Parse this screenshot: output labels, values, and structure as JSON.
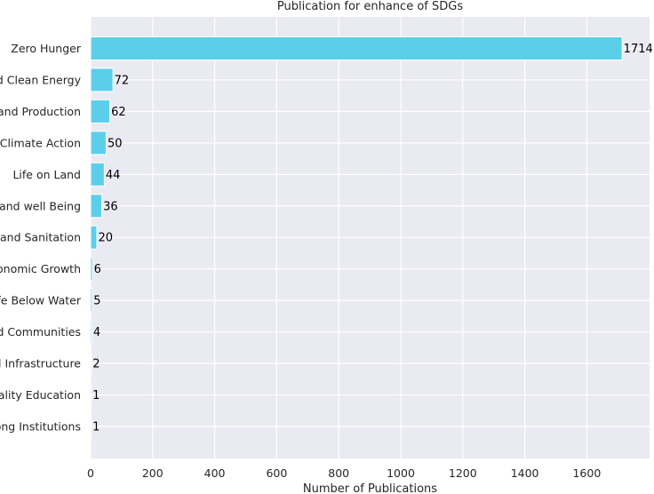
{
  "colors": {
    "bar": "#5BCFEA",
    "plot_background": "#EAEAF2",
    "grid": "#FFFFFF",
    "text": "#262626"
  },
  "chart_data": {
    "type": "bar",
    "orientation": "horizontal",
    "title": "Publication for enhance of SDGs",
    "xlabel": "Number of Publications",
    "ylabel": "",
    "categories": [
      "Zero Hunger",
      "d Clean Energy",
      "and Production",
      "Climate Action",
      "Life on Land",
      "and well Being",
      "and Sanitation",
      "onomic Growth",
      "fe Below Water",
      "d Communities",
      "l Infrastructure",
      "ality Education",
      "ong Institutions"
    ],
    "values": [
      1714,
      72,
      62,
      50,
      44,
      36,
      20,
      6,
      5,
      4,
      2,
      1,
      1
    ],
    "xlim": [
      0,
      1720
    ],
    "xticks": [
      0,
      200,
      400,
      600,
      800,
      1000,
      1200,
      1400,
      1600
    ],
    "grid": true,
    "style": "seaborn darkgrid"
  }
}
